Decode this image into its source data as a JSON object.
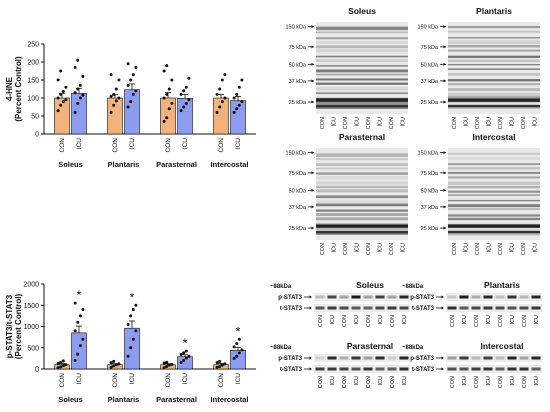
{
  "colors": {
    "con": "#F2B27A",
    "icu": "#8C9CF0",
    "axis": "#111111",
    "dot": "#111111"
  },
  "chart_data": [
    {
      "type": "bar",
      "panel": "4-HNE",
      "ylabel": "4-HNE",
      "ylabel2": "(Percent Control)",
      "ylim": [
        0,
        250
      ],
      "yticks": [
        0,
        50,
        100,
        150,
        200,
        250
      ],
      "groups": [
        "Soleus",
        "Plantaris",
        "Parasternal",
        "Intercostal"
      ],
      "conditions": [
        "CON",
        "ICU"
      ],
      "means": {
        "CON": [
          100,
          100,
          100,
          100
        ],
        "ICU": [
          113,
          123,
          99,
          93
        ]
      },
      "sem": {
        "CON": [
          12,
          9,
          15,
          10
        ],
        "ICU": [
          14,
          16,
          11,
          11
        ]
      },
      "significance": [
        false,
        false,
        false,
        false
      ],
      "points": {
        "CON": [
          [
            65,
            80,
            90,
            95,
            100,
            110,
            118,
            130,
            150,
            175
          ],
          [
            60,
            80,
            92,
            100,
            105,
            110,
            125,
            150,
            165
          ],
          [
            35,
            45,
            70,
            85,
            100,
            110,
            125,
            150,
            175,
            190
          ],
          [
            60,
            75,
            90,
            100,
            110,
            125,
            150,
            165
          ]
        ],
        "ICU": [
          [
            60,
            85,
            100,
            108,
            115,
            125,
            135,
            160,
            185,
            205
          ],
          [
            75,
            90,
            110,
            120,
            135,
            150,
            165,
            185,
            195
          ],
          [
            65,
            75,
            85,
            95,
            110,
            120,
            130,
            155
          ],
          [
            60,
            70,
            80,
            90,
            100,
            110,
            130,
            150
          ]
        ]
      }
    },
    {
      "type": "bar",
      "panel": "p-STAT3/t-STAT3",
      "ylabel": "p-STAT3/t-STAT3",
      "ylabel2": "(Percent Control)",
      "ylim": [
        0,
        2000
      ],
      "yticks": [
        0,
        500,
        1000,
        1500,
        2000
      ],
      "groups": [
        "Soleus",
        "Plantaris",
        "Parasternal",
        "Intercostal"
      ],
      "conditions": [
        "CON",
        "ICU"
      ],
      "means": {
        "CON": [
          100,
          100,
          100,
          100
        ],
        "ICU": [
          850,
          960,
          290,
          440
        ]
      },
      "sem": {
        "CON": [
          30,
          25,
          25,
          30
        ],
        "ICU": [
          160,
          170,
          45,
          70
        ]
      },
      "significance": [
        true,
        true,
        true,
        true
      ],
      "points": {
        "CON": [
          [
            30,
            50,
            80,
            100,
            130,
            160,
            190
          ],
          [
            40,
            70,
            100,
            120,
            150,
            180
          ],
          [
            30,
            60,
            90,
            110,
            140,
            160
          ],
          [
            40,
            60,
            90,
            120,
            150,
            180
          ]
        ],
        "ICU": [
          [
            200,
            350,
            550,
            700,
            900,
            1100,
            1250,
            1400,
            1550
          ],
          [
            300,
            500,
            700,
            900,
            1050,
            1250,
            1400,
            1500
          ],
          [
            150,
            200,
            260,
            300,
            340,
            380,
            420
          ],
          [
            250,
            300,
            380,
            450,
            520,
            600,
            700
          ]
        ]
      }
    }
  ],
  "blots_hne": [
    {
      "title": "Soleus",
      "kda": [
        "150 kDa",
        "75 kDa",
        "50 kDa",
        "37 kDa",
        "25 kDa"
      ],
      "lanes": [
        "CON",
        "ICU",
        "CON",
        "ICU",
        "CON",
        "ICU",
        "CON",
        "ICU"
      ]
    },
    {
      "title": "Plantaris",
      "kda": [
        "150 kDa",
        "75 kDa",
        "50 kDa",
        "37 kDa",
        "25 kDa"
      ],
      "lanes": [
        "CON",
        "ICU",
        "CON",
        "ICU",
        "CON",
        "ICU",
        "CON",
        "ICU"
      ]
    },
    {
      "title": "Parasternal",
      "kda": [
        "150 kDa",
        "75 kDa",
        "50 kDa",
        "37 kDa",
        "25 kDa"
      ],
      "lanes": [
        "CON",
        "ICU",
        "CON",
        "ICU",
        "CON",
        "ICU",
        "CON",
        "ICU"
      ]
    },
    {
      "title": "Intercostal",
      "kda": [
        "150 kDa",
        "75 kDa",
        "50 kDa",
        "37 kDa",
        "25 kDa"
      ],
      "lanes": [
        "CON",
        "ICU",
        "CON",
        "ICU",
        "CON",
        "ICU",
        "CON",
        "ICU"
      ]
    }
  ],
  "blots_stat": [
    {
      "title": "Soleus",
      "kda": "~88kDa",
      "rows": [
        "p-STAT3",
        "t-STAT3"
      ],
      "lanes": [
        "CON",
        "ICU",
        "CON",
        "ICU",
        "CON",
        "ICU",
        "CON",
        "ICU"
      ]
    },
    {
      "title": "Plantaris",
      "kda": "~88kDa",
      "rows": [
        "p-STAT3",
        "t-STAT3"
      ],
      "lanes": [
        "CON",
        "ICU",
        "CON",
        "ICU",
        "CON",
        "ICU",
        "CON",
        "ICU"
      ]
    },
    {
      "title": "Parasternal",
      "kda": "~88kDa",
      "rows": [
        "p-STAT3",
        "t-STAT3"
      ],
      "lanes": [
        "CON",
        "ICU",
        "CON",
        "ICU",
        "CON",
        "ICU",
        "CON",
        "ICU"
      ]
    },
    {
      "title": "Intercostal",
      "kda": "~88kDa",
      "rows": [
        "p-STAT3",
        "t-STAT3"
      ],
      "lanes": [
        "CON",
        "ICU",
        "CON",
        "ICU",
        "CON",
        "ICU",
        "CON",
        "ICU"
      ]
    }
  ]
}
